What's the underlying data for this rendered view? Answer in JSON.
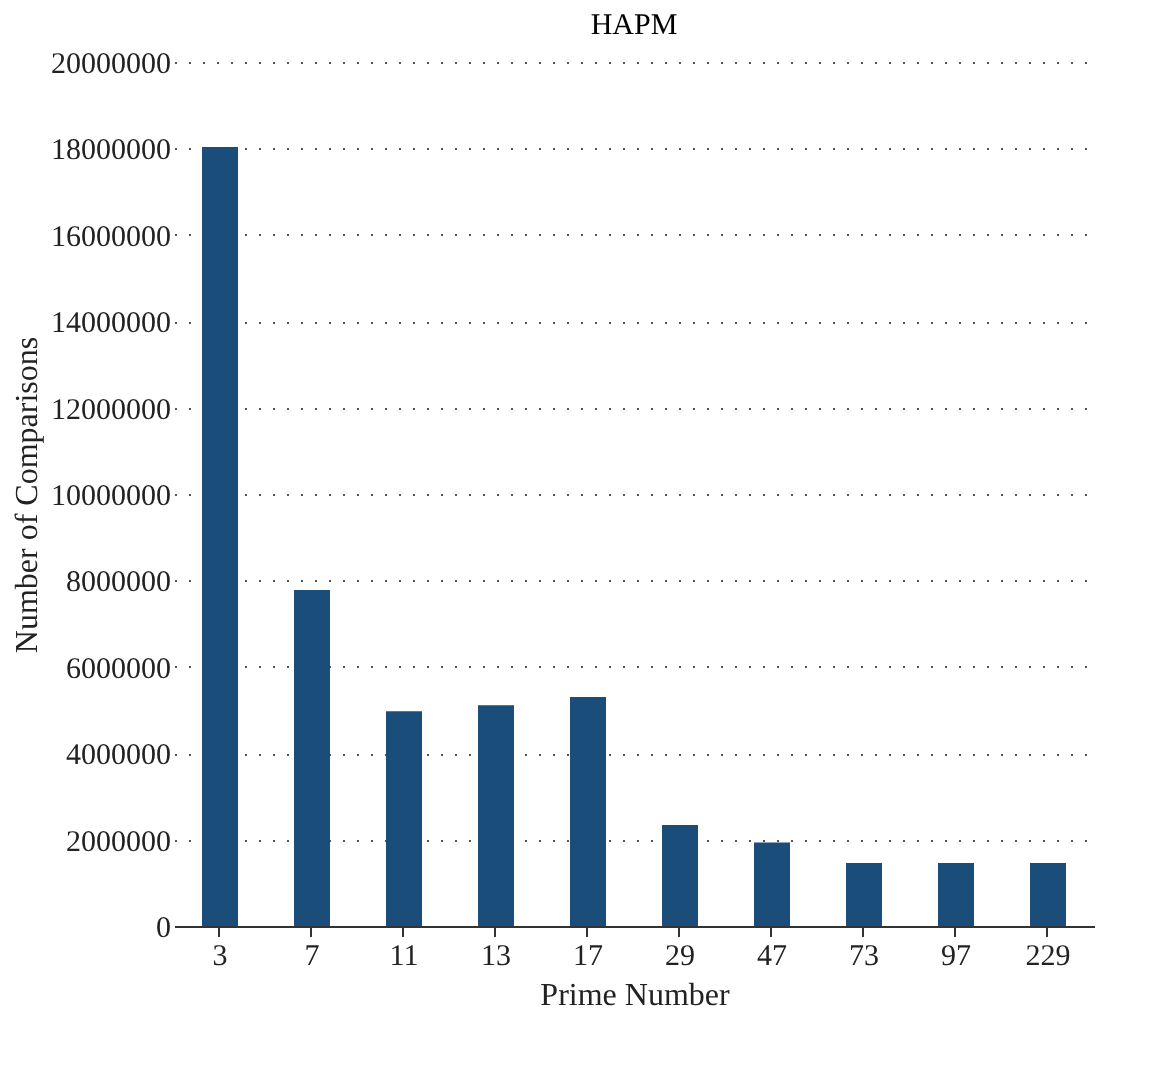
{
  "chart_data": {
    "type": "bar",
    "title": "HAPM",
    "xlabel": "Prime Number",
    "ylabel": "Number of Comparisons",
    "categories": [
      "3",
      "7",
      "11",
      "13",
      "17",
      "29",
      "47",
      "73",
      "97",
      "229"
    ],
    "values": [
      18030000,
      7780000,
      4970000,
      5110000,
      5300000,
      2340000,
      1930000,
      1460000,
      1460000,
      1460000
    ],
    "color": "#1a4d7a",
    "ylim": [
      0,
      20000000
    ],
    "yticks": [
      0,
      2000000,
      4000000,
      6000000,
      8000000,
      10000000,
      12000000,
      14000000,
      16000000,
      18000000,
      20000000
    ],
    "grid": "y"
  }
}
